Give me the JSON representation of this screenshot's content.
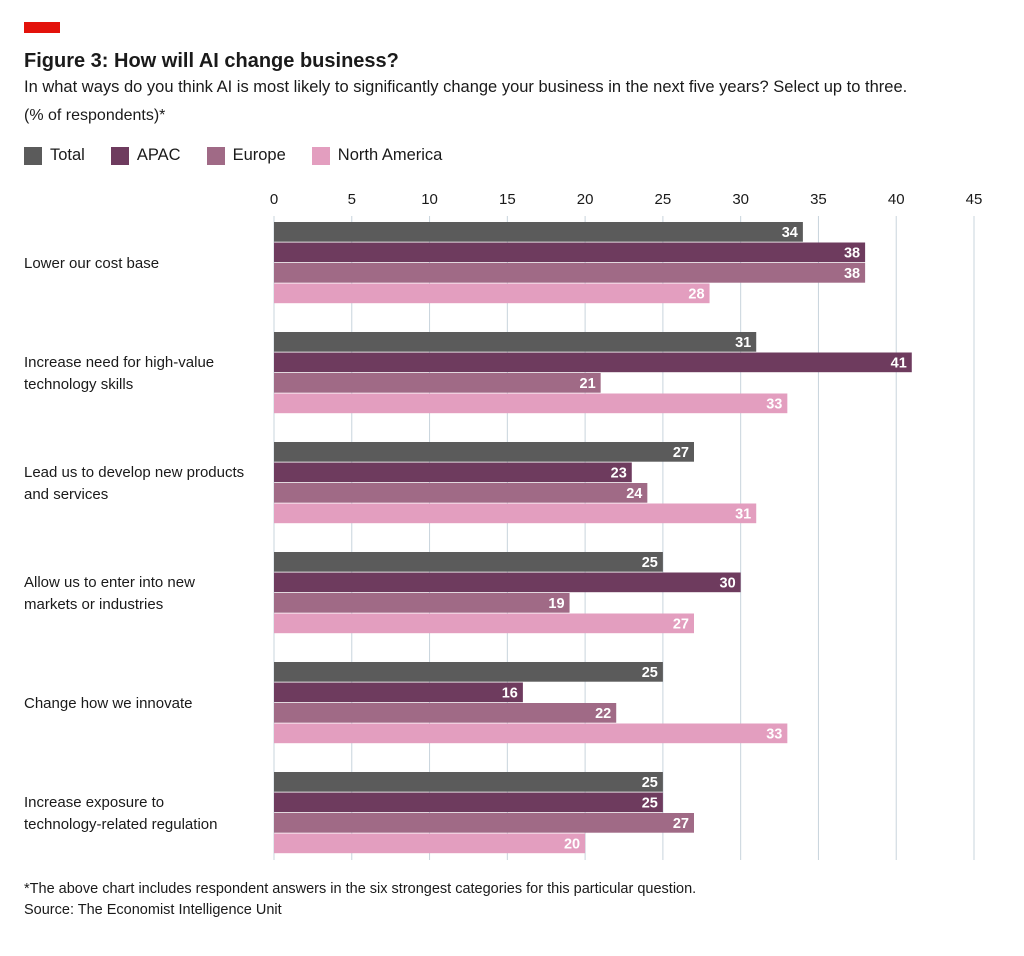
{
  "header": {
    "title": "Figure 3: How will AI change business?",
    "subtitle": "In what ways do you think AI is most likely to significantly change your business in the next five years? Select up to three.",
    "unit": "(% of respondents)*"
  },
  "footer": {
    "footnote": "*The above chart includes respondent answers in the six strongest categories for this particular question.",
    "source": "Source: The Economist Intelligence Unit"
  },
  "colors": {
    "accent": "#e3120b",
    "gridline": "#c8d4dc",
    "Total": "#5b5b5b",
    "APAC": "#6e3b5e",
    "Europe": "#a06a86",
    "North America": "#e39ebf"
  },
  "chart_data": {
    "type": "bar",
    "orientation": "horizontal",
    "xlim": [
      0,
      45
    ],
    "ticks": [
      0,
      5,
      10,
      15,
      20,
      25,
      30,
      35,
      40,
      45
    ],
    "grid": true,
    "legend": "top-left",
    "categories": [
      [
        "Lower our cost base"
      ],
      [
        "Increase need for high-value",
        "technology skills"
      ],
      [
        "Lead us to develop new products",
        "and services"
      ],
      [
        "Allow us to enter into new",
        "markets or industries"
      ],
      [
        "Change how we innovate"
      ],
      [
        "Increase exposure to",
        "technology-related regulation"
      ]
    ],
    "series": [
      {
        "name": "Total",
        "values": [
          34,
          31,
          27,
          25,
          25,
          25
        ]
      },
      {
        "name": "APAC",
        "values": [
          38,
          41,
          23,
          30,
          16,
          25
        ]
      },
      {
        "name": "Europe",
        "values": [
          38,
          21,
          24,
          19,
          22,
          27
        ]
      },
      {
        "name": "North America",
        "values": [
          28,
          33,
          31,
          27,
          33,
          20
        ]
      }
    ]
  }
}
